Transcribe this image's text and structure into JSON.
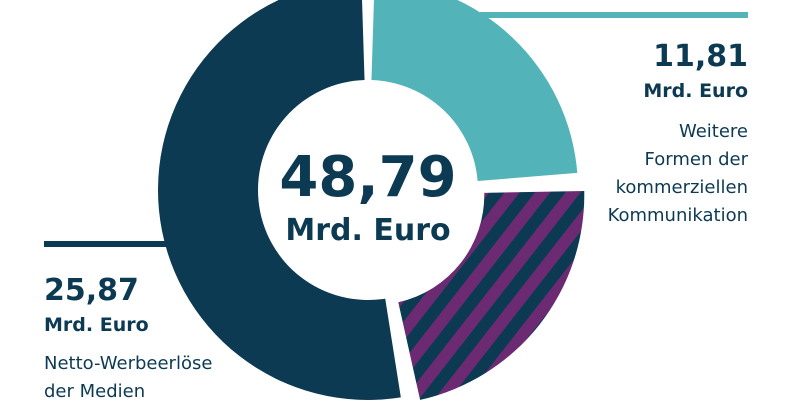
{
  "chart_data": {
    "type": "pie",
    "total": {
      "value": "48,79",
      "unit": "Mrd. Euro"
    },
    "slices": [
      {
        "value": "11,81",
        "unit": "Mrd. Euro",
        "label_lines": [
          "Weitere",
          "Formen der",
          "kommerziellen",
          "Kommunikation"
        ],
        "color": "#52b3b8",
        "pattern": "solid",
        "fraction": 0.242
      },
      {
        "value": "",
        "unit": "",
        "label_lines": [],
        "color": "#6b2a72",
        "stripe_color": "#0c3a52",
        "pattern": "diagonal-stripes",
        "fraction": 0.228
      },
      {
        "value": "25,87",
        "unit": "Mrd. Euro",
        "label_lines": [
          "Netto-Werbeerlöse",
          "der Medien"
        ],
        "color": "#0c3a52",
        "pattern": "solid",
        "fraction": 0.53
      }
    ]
  },
  "colors": {
    "text": "#0c3a52",
    "leader_teal": "#52b3b8",
    "leader_navy": "#0c3a52"
  }
}
